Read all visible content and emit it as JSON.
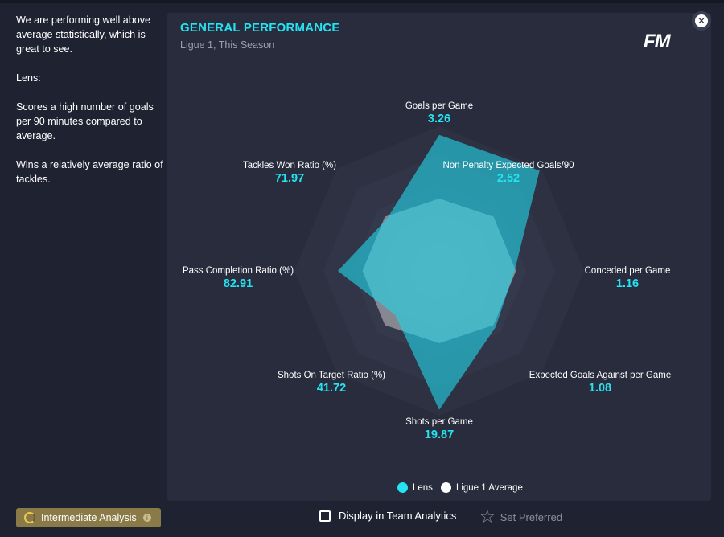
{
  "sidebar": {
    "paragraphs": [
      "We are performing well above average statistically, which is great to see.",
      "Lens:",
      "Scores a high number of goals per 90 minutes compared to average.",
      "Wins a relatively average ratio of tackles."
    ]
  },
  "panel": {
    "title": "GENERAL PERFORMANCE",
    "subtitle": "Ligue 1, This Season",
    "logo": "FM"
  },
  "colors": {
    "accent": "#24e3f2",
    "lens": "#24d4e6",
    "average": "#c8c8c8"
  },
  "chart_data": {
    "type": "radar",
    "metrics": [
      {
        "name": "Goals per Game",
        "value": "3.26",
        "lens_r": 0.94,
        "avg_r": 0.5
      },
      {
        "name": "Non Penalty Expected Goals/90",
        "value": "2.52",
        "lens_r": 0.98,
        "avg_r": 0.53
      },
      {
        "name": "Conceded per Game",
        "value": "1.16",
        "lens_r": 0.52,
        "avg_r": 0.53
      },
      {
        "name": "Expected Goals Against per Game",
        "value": "1.08",
        "lens_r": 0.55,
        "avg_r": 0.53
      },
      {
        "name": "Shots per Game",
        "value": "19.87",
        "lens_r": 0.96,
        "avg_r": 0.5
      },
      {
        "name": "Shots On Target Ratio (%)",
        "value": "41.72",
        "lens_r": 0.43,
        "avg_r": 0.53
      },
      {
        "name": "Pass Completion Ratio (%)",
        "value": "82.91",
        "lens_r": 0.7,
        "avg_r": 0.53
      },
      {
        "name": "Tackles Won Ratio (%)",
        "value": "71.97",
        "lens_r": 0.51,
        "avg_r": 0.53
      }
    ],
    "series": [
      {
        "name": "Lens"
      },
      {
        "name": "Ligue 1 Average"
      }
    ]
  },
  "footer": {
    "badge_label": "Intermediate Analysis",
    "checkbox_label": "Display in Team Analytics",
    "preferred_label": "Set Preferred"
  }
}
